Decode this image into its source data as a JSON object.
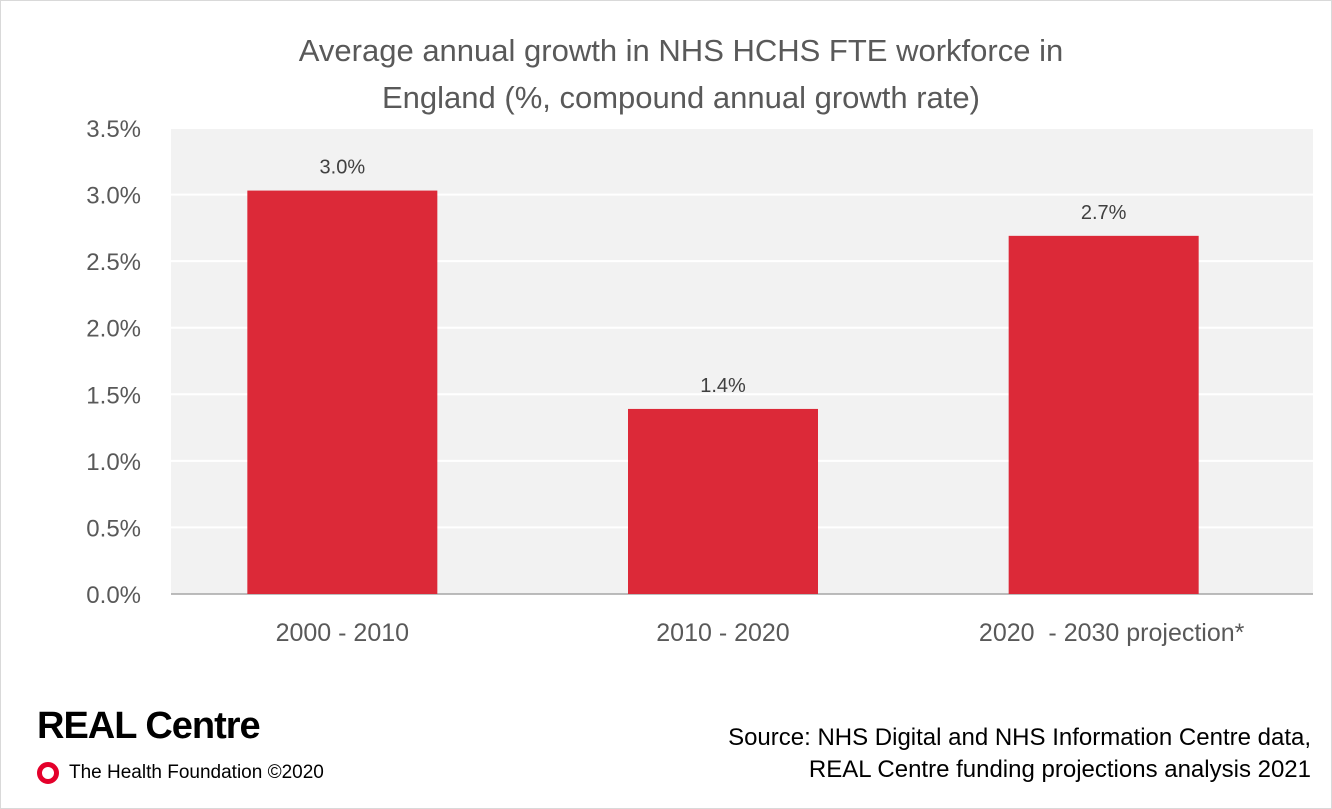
{
  "chart_data": {
    "type": "bar",
    "title_lines": [
      "Average annual growth in NHS HCHS FTE workforce in",
      "England (%, compound annual growth rate)"
    ],
    "categories": [
      "2000 - 2010",
      "2010 - 2020",
      "2020  - 2030 projection*"
    ],
    "values": [
      3.03,
      1.39,
      2.69
    ],
    "data_labels": [
      "3.0%",
      "1.4%",
      "2.7%"
    ],
    "yticks": [
      "0.0%",
      "0.5%",
      "1.0%",
      "1.5%",
      "2.0%",
      "2.5%",
      "3.0%",
      "3.5%"
    ],
    "ylim": [
      0,
      3.5
    ],
    "grid": true,
    "bar_color": "#dc2938",
    "plot_background": "#f2f2f2",
    "gridline_color": "#ffffff"
  },
  "branding": {
    "title": "REAL Centre",
    "org_label": "The Health Foundation ©2020",
    "ring_color": "#e4002b"
  },
  "source": {
    "line1": "Source: NHS Digital and NHS Information Centre data,",
    "line2": "REAL Centre funding projections analysis 2021"
  }
}
